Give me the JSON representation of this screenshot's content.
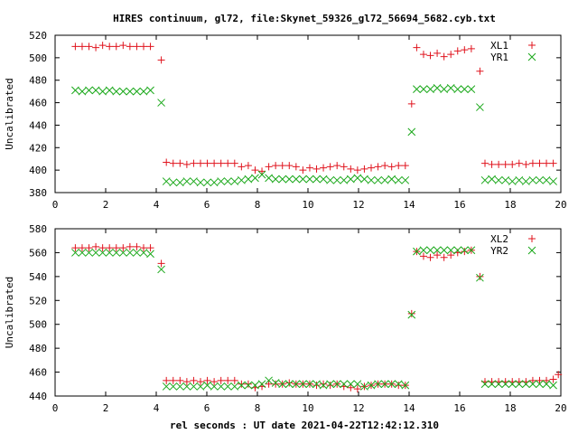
{
  "chart_data": {
    "title": "HIRES continuum, gl72, file:Skynet_59326_gl72_56694_5682.cyb.txt",
    "xlabel": "rel seconds : UT date 2021-04-22T12:42:12.310",
    "panels": [
      {
        "type": "scatter",
        "ylabel": "Uncalibrated",
        "xlim": [
          0,
          20
        ],
        "ylim": [
          380,
          520
        ],
        "xticks": [
          0,
          2,
          4,
          6,
          8,
          10,
          12,
          14,
          16,
          18,
          20
        ],
        "yticks": [
          380,
          400,
          420,
          440,
          460,
          480,
          500,
          520
        ],
        "legend_position": "top-right",
        "series": [
          {
            "name": "XL1",
            "marker": "plus",
            "color": "#e0141e",
            "x": [
              0.8,
              1.07,
              1.34,
              1.61,
              1.88,
              2.15,
              2.42,
              2.69,
              2.96,
              3.23,
              3.5,
              3.77,
              4.2,
              4.4,
              4.67,
              4.94,
              5.21,
              5.48,
              5.75,
              6.02,
              6.29,
              6.56,
              6.83,
              7.1,
              7.37,
              7.64,
              7.91,
              8.18,
              8.45,
              8.72,
              8.99,
              9.26,
              9.53,
              9.8,
              10.07,
              10.34,
              10.61,
              10.88,
              11.15,
              11.42,
              11.69,
              11.96,
              12.23,
              12.5,
              12.77,
              13.04,
              13.31,
              13.58,
              13.85,
              14.1,
              14.3,
              14.57,
              14.84,
              15.11,
              15.38,
              15.65,
              15.92,
              16.19,
              16.46,
              16.8,
              17.0,
              17.27,
              17.54,
              17.81,
              18.08,
              18.35,
              18.62,
              18.89,
              19.16,
              19.43,
              19.7
            ],
            "y": [
              510,
              510,
              510,
              509,
              511,
              510,
              510,
              511,
              510,
              510,
              510,
              510,
              498,
              407,
              406,
              406,
              405,
              406,
              406,
              406,
              406,
              406,
              406,
              406,
              403,
              404,
              400,
              399,
              403,
              404,
              404,
              404,
              403,
              400,
              402,
              401,
              402,
              403,
              404,
              403,
              401,
              400,
              401,
              402,
              403,
              404,
              403,
              404,
              404,
              459,
              509,
              503,
              502,
              504,
              501,
              503,
              506,
              507,
              508,
              488,
              406,
              405,
              405,
              405,
              405,
              406,
              405,
              406,
              406,
              406,
              406
            ]
          },
          {
            "name": "YR1",
            "marker": "cross",
            "color": "#1aa81a",
            "x": [
              0.8,
              1.07,
              1.34,
              1.61,
              1.88,
              2.15,
              2.42,
              2.69,
              2.96,
              3.23,
              3.5,
              3.77,
              4.2,
              4.4,
              4.67,
              4.94,
              5.21,
              5.48,
              5.75,
              6.02,
              6.29,
              6.56,
              6.83,
              7.1,
              7.37,
              7.64,
              7.91,
              8.18,
              8.45,
              8.72,
              8.99,
              9.26,
              9.53,
              9.8,
              10.07,
              10.34,
              10.61,
              10.88,
              11.15,
              11.42,
              11.69,
              11.96,
              12.23,
              12.5,
              12.77,
              13.04,
              13.31,
              13.58,
              13.85,
              14.1,
              14.3,
              14.57,
              14.84,
              15.11,
              15.38,
              15.65,
              15.92,
              16.19,
              16.46,
              16.8,
              17.0,
              17.27,
              17.54,
              17.81,
              18.08,
              18.35,
              18.62,
              18.89,
              19.16,
              19.43,
              19.7
            ],
            "y": [
              471,
              470,
              471,
              471,
              470,
              471,
              470,
              470,
              470,
              470,
              470,
              471,
              460,
              390,
              389,
              389,
              390,
              390,
              389,
              389,
              389,
              390,
              390,
              390,
              391,
              392,
              393,
              396,
              393,
              392,
              392,
              392,
              392,
              392,
              392,
              392,
              392,
              391,
              391,
              391,
              392,
              393,
              392,
              391,
              391,
              391,
              392,
              391,
              391,
              434,
              472,
              472,
              472,
              473,
              472,
              473,
              472,
              472,
              472,
              456,
              391,
              392,
              391,
              391,
              390,
              391,
              390,
              391,
              391,
              391,
              390
            ]
          }
        ]
      },
      {
        "type": "scatter",
        "ylabel": "Uncalibrated",
        "xlim": [
          0,
          20
        ],
        "ylim": [
          440,
          580
        ],
        "xticks": [
          0,
          2,
          4,
          6,
          8,
          10,
          12,
          14,
          16,
          18,
          20
        ],
        "yticks": [
          440,
          460,
          480,
          500,
          520,
          540,
          560,
          580
        ],
        "legend_position": "top-right",
        "series": [
          {
            "name": "XL2",
            "marker": "plus",
            "color": "#e0141e",
            "x": [
              0.8,
              1.07,
              1.34,
              1.61,
              1.88,
              2.15,
              2.42,
              2.69,
              2.96,
              3.23,
              3.5,
              3.77,
              4.2,
              4.4,
              4.67,
              4.94,
              5.21,
              5.48,
              5.75,
              6.02,
              6.29,
              6.56,
              6.83,
              7.1,
              7.37,
              7.64,
              7.91,
              8.18,
              8.45,
              8.72,
              8.99,
              9.26,
              9.53,
              9.8,
              10.07,
              10.34,
              10.61,
              10.88,
              11.15,
              11.42,
              11.69,
              11.96,
              12.23,
              12.5,
              12.77,
              13.04,
              13.31,
              13.58,
              13.85,
              14.1,
              14.3,
              14.57,
              14.84,
              15.11,
              15.38,
              15.65,
              15.92,
              16.19,
              16.46,
              16.8,
              17.0,
              17.27,
              17.54,
              17.81,
              18.08,
              18.35,
              18.62,
              18.89,
              19.16,
              19.43,
              19.7,
              19.9
            ],
            "y": [
              564,
              564,
              564,
              565,
              564,
              564,
              564,
              564,
              565,
              565,
              564,
              564,
              551,
              453,
              453,
              453,
              452,
              453,
              452,
              453,
              452,
              453,
              453,
              453,
              450,
              450,
              447,
              448,
              450,
              450,
              450,
              451,
              450,
              450,
              450,
              449,
              450,
              449,
              450,
              448,
              447,
              446,
              448,
              449,
              450,
              450,
              450,
              449,
              449,
              509,
              561,
              557,
              556,
              558,
              556,
              558,
              560,
              561,
              562,
              540,
              452,
              452,
              452,
              452,
              452,
              452,
              452,
              453,
              453,
              453,
              454,
              458
            ]
          },
          {
            "name": "YR2",
            "marker": "cross",
            "color": "#1aa81a",
            "x": [
              0.8,
              1.07,
              1.34,
              1.61,
              1.88,
              2.15,
              2.42,
              2.69,
              2.96,
              3.23,
              3.5,
              3.77,
              4.2,
              4.4,
              4.67,
              4.94,
              5.21,
              5.48,
              5.75,
              6.02,
              6.29,
              6.56,
              6.83,
              7.1,
              7.37,
              7.64,
              7.91,
              8.18,
              8.45,
              8.72,
              8.99,
              9.26,
              9.53,
              9.8,
              10.07,
              10.34,
              10.61,
              10.88,
              11.15,
              11.42,
              11.69,
              11.96,
              12.23,
              12.5,
              12.77,
              13.04,
              13.31,
              13.58,
              13.85,
              14.1,
              14.3,
              14.57,
              14.84,
              15.11,
              15.38,
              15.65,
              15.92,
              16.19,
              16.46,
              16.8,
              17.0,
              17.27,
              17.54,
              17.81,
              18.08,
              18.35,
              18.62,
              18.89,
              19.16,
              19.43,
              19.7
            ],
            "y": [
              560,
              560,
              560,
              560,
              560,
              560,
              560,
              560,
              560,
              560,
              560,
              559,
              546,
              448,
              448,
              448,
              448,
              448,
              448,
              449,
              448,
              448,
              448,
              448,
              449,
              449,
              449,
              450,
              453,
              451,
              450,
              450,
              450,
              450,
              450,
              450,
              449,
              450,
              450,
              450,
              450,
              450,
              448,
              449,
              450,
              450,
              450,
              450,
              449,
              508,
              561,
              562,
              562,
              562,
              562,
              562,
              562,
              562,
              562,
              539,
              450,
              450,
              450,
              450,
              450,
              450,
              450,
              450,
              450,
              450,
              449
            ]
          }
        ]
      }
    ]
  }
}
